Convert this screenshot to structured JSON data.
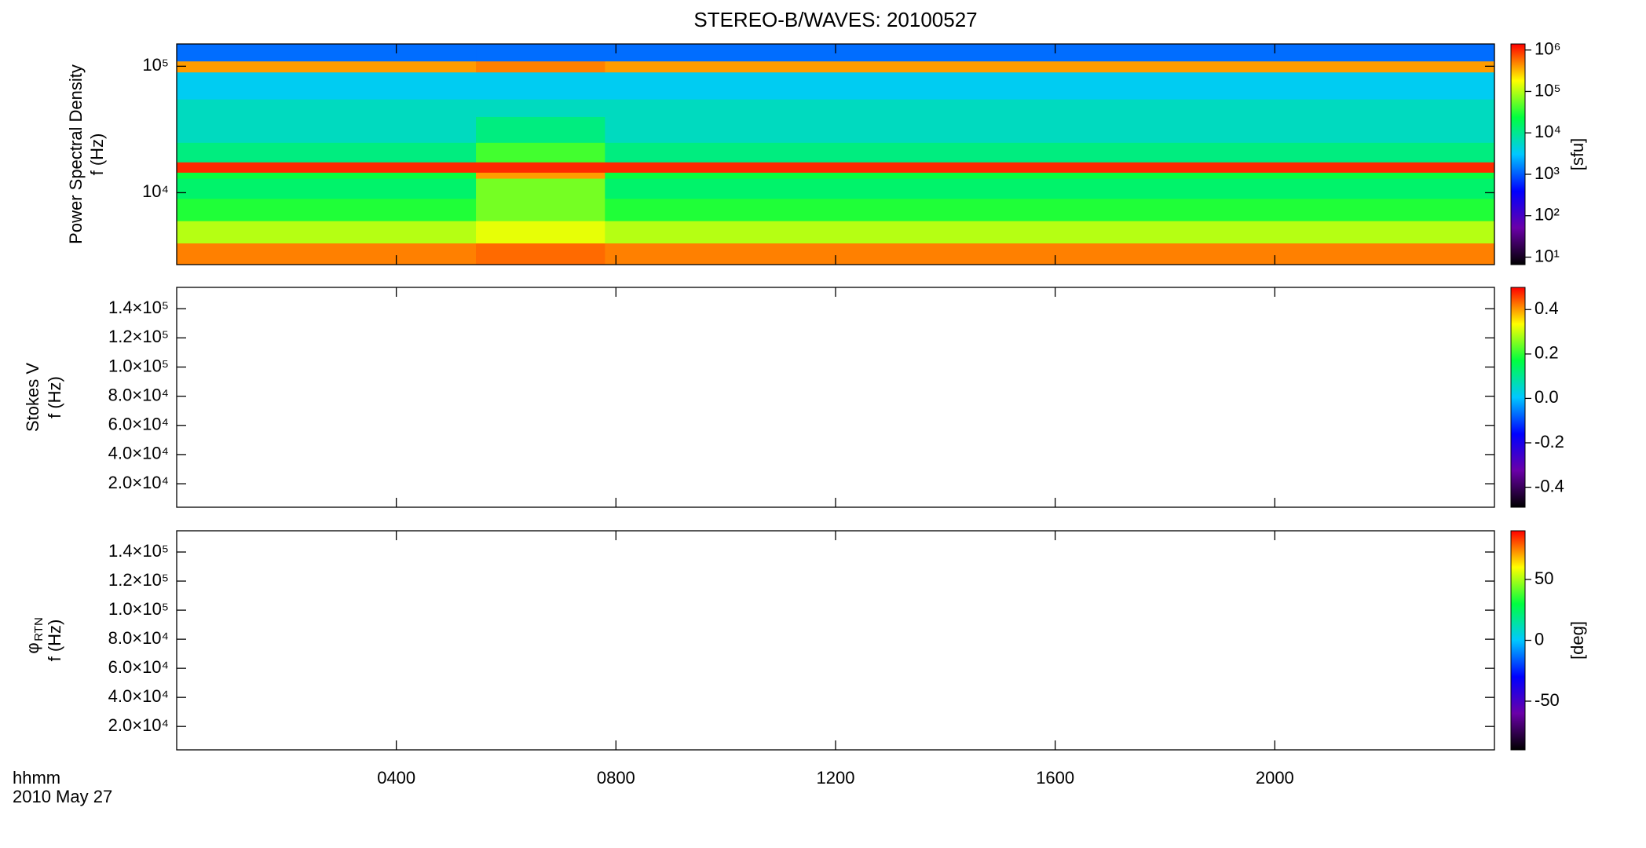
{
  "chart_data": [
    {
      "type": "heatmap",
      "title": "STEREO-B/WAVES: 20100527",
      "ylabel": [
        "Power Spectral Density",
        "f (Hz)"
      ],
      "ylog": true,
      "ylim": [
        2700,
        150000
      ],
      "yticks": [
        {
          "value": 10000,
          "label": "10⁴"
        },
        {
          "value": 100000,
          "label": "10⁵"
        }
      ],
      "xlim": [
        0,
        24
      ],
      "xticks": [
        4,
        8,
        12,
        16,
        20
      ],
      "x_edges": [
        0,
        5.45,
        7.8,
        24
      ],
      "y_edges": [
        2700,
        4000,
        6000,
        9000,
        13000,
        14500,
        17500,
        25000,
        40000,
        55000,
        90000,
        110000,
        150000
      ],
      "values": [
        [
          500000,
          600000,
          500000
        ],
        [
          100000,
          150000,
          100000
        ],
        [
          30000,
          60000,
          30000
        ],
        [
          15000,
          60000,
          15000
        ],
        [
          25000,
          400000,
          25000
        ],
        [
          1000000,
          1000000,
          1000000
        ],
        [
          12000,
          40000,
          12000
        ],
        [
          6000,
          12000,
          6000
        ],
        [
          6000,
          6000,
          6000
        ],
        [
          3500,
          3500,
          3500
        ],
        [
          400000,
          500000,
          400000
        ],
        [
          1200,
          1200,
          1200
        ]
      ],
      "colors": [
        "#000000",
        "#6a00a8",
        "#0000ff",
        "#00c8ff",
        "#00ff40",
        "#ffff00",
        "#ff0000"
      ],
      "clog": true,
      "clim": [
        6.6,
        1400000
      ],
      "cticks": [
        {
          "value": 10,
          "label": "10¹"
        },
        {
          "value": 100,
          "label": "10²"
        },
        {
          "value": 1000,
          "label": "10³"
        },
        {
          "value": 10000,
          "label": "10⁴"
        },
        {
          "value": 100000,
          "label": "10⁵"
        },
        {
          "value": 1000000,
          "label": "10⁶"
        }
      ],
      "clabel": "[sfu]"
    },
    {
      "type": "heatmap",
      "ylabel": [
        "Stokes V",
        "f (Hz)"
      ],
      "ylog": false,
      "ylim": [
        3900,
        154600
      ],
      "yticks": [
        {
          "value": 20000,
          "label": "2.0×10⁴"
        },
        {
          "value": 40000,
          "label": "4.0×10⁴"
        },
        {
          "value": 60000,
          "label": "6.0×10⁴"
        },
        {
          "value": 80000,
          "label": "8.0×10⁴"
        },
        {
          "value": 100000,
          "label": "1.0×10⁵"
        },
        {
          "value": 120000,
          "label": "1.2×10⁵"
        },
        {
          "value": 140000,
          "label": "1.4×10⁵"
        }
      ],
      "xlim": [
        0,
        24
      ],
      "xticks": [
        4,
        8,
        12,
        16,
        20
      ],
      "colors": [
        "#000000",
        "#6a00a8",
        "#0000ff",
        "#00c8ff",
        "#00ff40",
        "#ffff00",
        "#ff0000"
      ],
      "clog": false,
      "clim": [
        -0.49,
        0.5
      ],
      "cticks": [
        -0.4,
        -0.2,
        {
          "value": 0,
          "label": "0.0"
        },
        0.2,
        0.4
      ]
    },
    {
      "type": "heatmap",
      "ylabel": [
        "φ",
        "f (Hz)"
      ],
      "ylabel_sub": "RTN",
      "ylog": false,
      "ylim": [
        3900,
        154600
      ],
      "yticks": [
        {
          "value": 20000,
          "label": "2.0×10⁴"
        },
        {
          "value": 40000,
          "label": "4.0×10⁴"
        },
        {
          "value": 60000,
          "label": "6.0×10⁴"
        },
        {
          "value": 80000,
          "label": "8.0×10⁴"
        },
        {
          "value": 100000,
          "label": "1.0×10⁵"
        },
        {
          "value": 120000,
          "label": "1.2×10⁵"
        },
        {
          "value": 140000,
          "label": "1.4×10⁵"
        }
      ],
      "xlim": [
        0,
        24
      ],
      "xticks": [
        {
          "value": 4,
          "label": "0400"
        },
        {
          "value": 8,
          "label": "0800"
        },
        {
          "value": 12,
          "label": "1200"
        },
        {
          "value": 16,
          "label": "1600"
        },
        {
          "value": 20,
          "label": "2000"
        }
      ],
      "xlabel": [
        "hhmm",
        "2010 May 27"
      ],
      "colors": [
        "#000000",
        "#6a00a8",
        "#0000ff",
        "#00c8ff",
        "#00ff40",
        "#ffff00",
        "#ff0000"
      ],
      "clog": false,
      "clim": [
        -90,
        90
      ],
      "cticks": [
        -50,
        0,
        50
      ],
      "clabel": "[deg]"
    }
  ]
}
